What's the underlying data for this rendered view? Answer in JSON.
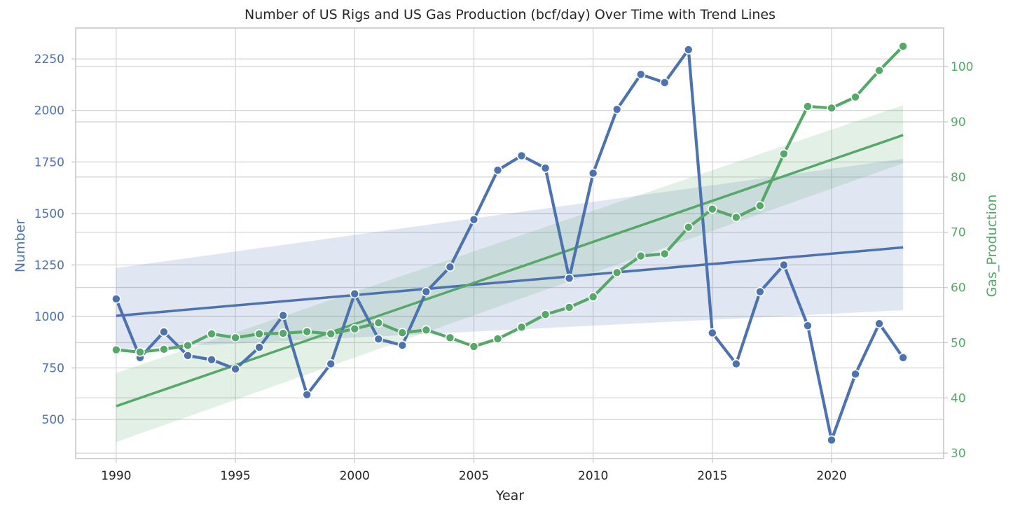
{
  "chart_data": {
    "type": "line",
    "title": "Number of US Rigs and US Gas Production (bcf/day) Over Time with Trend Lines",
    "xlabel": "Year",
    "ylabel_left": "Number",
    "ylabel_right": "Gas_Production",
    "xlim": [
      1988.3,
      2024.7
    ],
    "ylim_left": [
      310,
      2400
    ],
    "ylim_right": [
      29,
      107
    ],
    "x_ticks": [
      1990,
      1995,
      2000,
      2005,
      2010,
      2015,
      2020
    ],
    "y_ticks_left": [
      500,
      750,
      1000,
      1250,
      1500,
      1750,
      2000,
      2250
    ],
    "y_ticks_right": [
      30,
      40,
      50,
      60,
      70,
      80,
      90,
      100
    ],
    "grid": true,
    "colors": {
      "rigs": "#4c72b0",
      "gas": "#55a868",
      "text": "#262626"
    },
    "x": [
      1990,
      1991,
      1992,
      1993,
      1994,
      1995,
      1996,
      1997,
      1998,
      1999,
      2000,
      2001,
      2002,
      2003,
      2004,
      2005,
      2006,
      2007,
      2008,
      2009,
      2010,
      2011,
      2012,
      2013,
      2014,
      2015,
      2016,
      2017,
      2018,
      2019,
      2020,
      2021,
      2022,
      2023
    ],
    "series": [
      {
        "axis": "left",
        "values": [
          1085,
          800,
          925,
          810,
          790,
          745,
          850,
          1005,
          620,
          770,
          1110,
          890,
          860,
          1120,
          1240,
          1470,
          1710,
          1780,
          1720,
          1185,
          1695,
          2005,
          2175,
          2135,
          2295,
          920,
          770,
          1120,
          1250,
          955,
          400,
          720,
          965,
          800
        ],
        "trend": {
          "start": [
            1990,
            1003
          ],
          "end": [
            2023,
            1335
          ]
        },
        "ci": {
          "upper_start": 1235,
          "upper_end": 1765,
          "lower_start": 840,
          "lower_end": 1030
        }
      },
      {
        "axis": "right",
        "values": [
          48.7,
          48.3,
          48.8,
          49.5,
          51.6,
          50.9,
          51.6,
          51.7,
          52.0,
          51.6,
          52.5,
          53.6,
          51.8,
          52.3,
          50.9,
          49.3,
          50.7,
          52.8,
          55.1,
          56.4,
          58.3,
          62.7,
          65.7,
          66.1,
          70.9,
          74.2,
          72.7,
          74.8,
          84.2,
          92.8,
          92.5,
          94.5,
          99.3,
          103.7
        ],
        "trend": {
          "start": [
            1990,
            38.5
          ],
          "end": [
            2023,
            87.6
          ]
        },
        "ci": {
          "upper_start": 44.5,
          "upper_end": 93.0,
          "lower_start": 32.0,
          "lower_end": 82.5
        }
      }
    ]
  }
}
